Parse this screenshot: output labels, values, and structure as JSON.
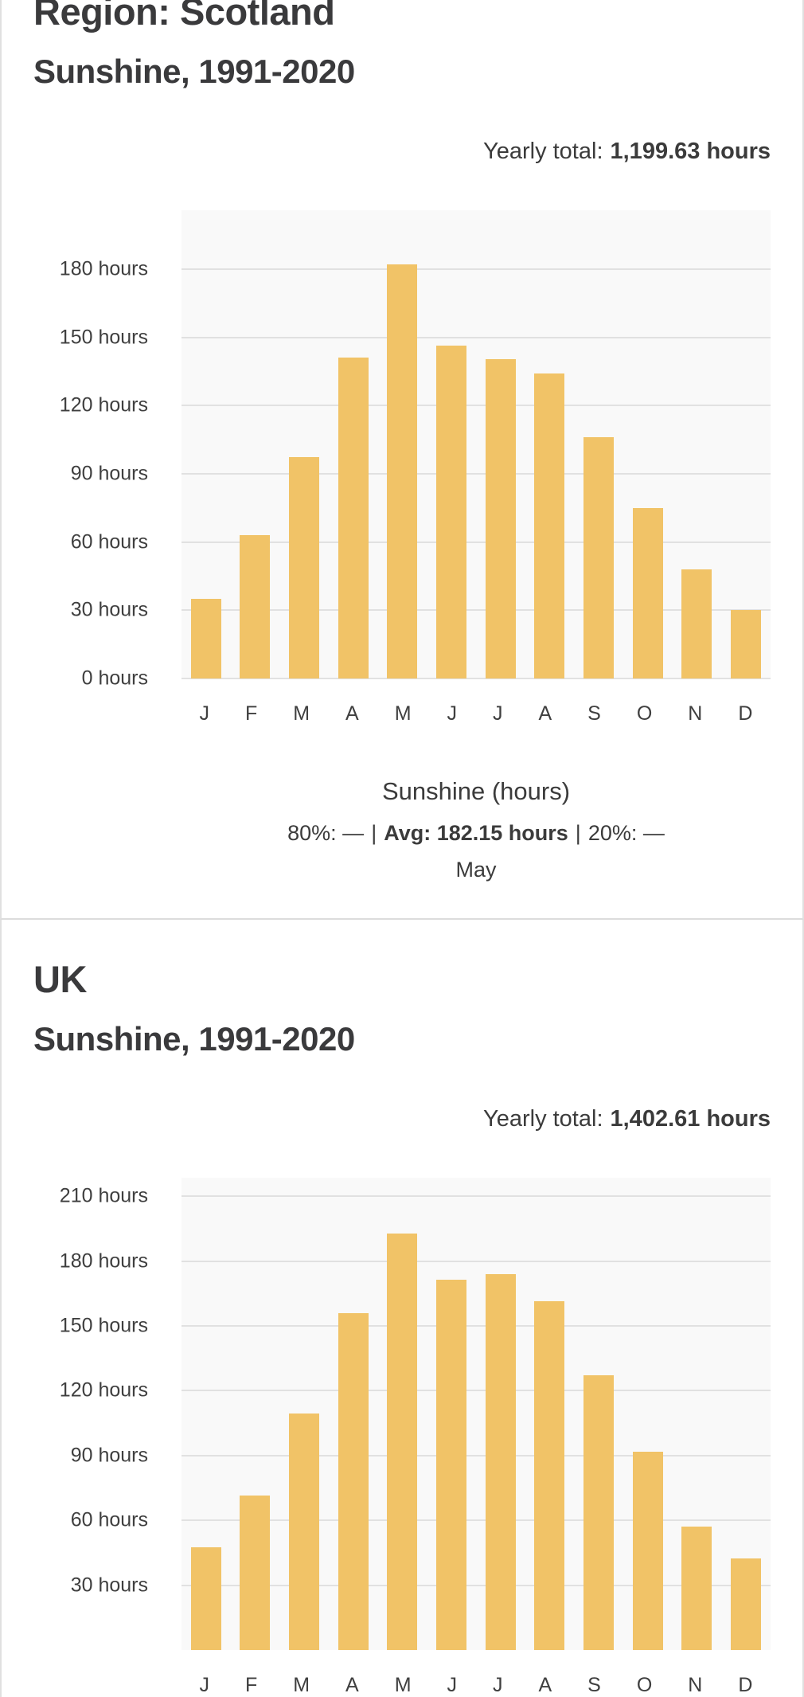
{
  "page": {
    "background": "#ffffff",
    "card_border_color": "#e0e0e0",
    "divider_color": "#dcdcdc",
    "plot_background": "#f9f9f9",
    "gridline_color": "#e1e1e1",
    "heading_color": "#3a3a3c",
    "text_color": "#3b3b3b"
  },
  "chart_data": [
    {
      "type": "bar",
      "region_label": "Region: Scotland",
      "title": "Sunshine, 1991-2020",
      "yearly_total_label": "Yearly total:",
      "yearly_total_value": "1,199.63 hours",
      "categories": [
        "J",
        "F",
        "M",
        "A",
        "M",
        "J",
        "J",
        "A",
        "S",
        "O",
        "N",
        "D"
      ],
      "values": [
        35.1,
        63.2,
        97.4,
        141.2,
        182.15,
        146.6,
        140.5,
        134.3,
        106.1,
        75.0,
        47.9,
        30.2
      ],
      "unit": "hours",
      "bar_color": "#f1c367",
      "grid": true,
      "legend": false,
      "ylim": [
        0,
        206
      ],
      "y_ticks": [
        {
          "value": 180,
          "label": "180 hours"
        },
        {
          "value": 150,
          "label": "150 hours"
        },
        {
          "value": 120,
          "label": "120 hours"
        },
        {
          "value": 90,
          "label": "90 hours"
        },
        {
          "value": 60,
          "label": "60 hours"
        },
        {
          "value": 30,
          "label": "30 hours"
        },
        {
          "value": 0,
          "label": "0 hours"
        }
      ],
      "footer": {
        "xlabel": "Sunshine (hours)",
        "range_low": "80%: —",
        "avg": "Avg: 182.15 hours",
        "range_high": "20%: —",
        "sep": "|",
        "peak_month": "May"
      }
    },
    {
      "type": "bar",
      "region_label": "UK",
      "title": "Sunshine, 1991-2020",
      "yearly_total_label": "Yearly total:",
      "yearly_total_value": "1,402.61 hours",
      "categories": [
        "J",
        "F",
        "M",
        "A",
        "M",
        "J",
        "J",
        "A",
        "S",
        "O",
        "N",
        "D"
      ],
      "values": [
        47.5,
        71.5,
        109.5,
        155.8,
        192.9,
        171.3,
        174.0,
        161.5,
        127.2,
        91.7,
        57.3,
        42.4
      ],
      "unit": "hours",
      "bar_color": "#f1c367",
      "grid": true,
      "legend": false,
      "ylim": [
        0,
        218.6
      ],
      "y_ticks": [
        {
          "value": 210,
          "label": "210 hours"
        },
        {
          "value": 180,
          "label": "180 hours"
        },
        {
          "value": 150,
          "label": "150 hours"
        },
        {
          "value": 120,
          "label": "120 hours"
        },
        {
          "value": 90,
          "label": "90 hours"
        },
        {
          "value": 60,
          "label": "60 hours"
        },
        {
          "value": 30,
          "label": "30 hours"
        }
      ]
    }
  ]
}
